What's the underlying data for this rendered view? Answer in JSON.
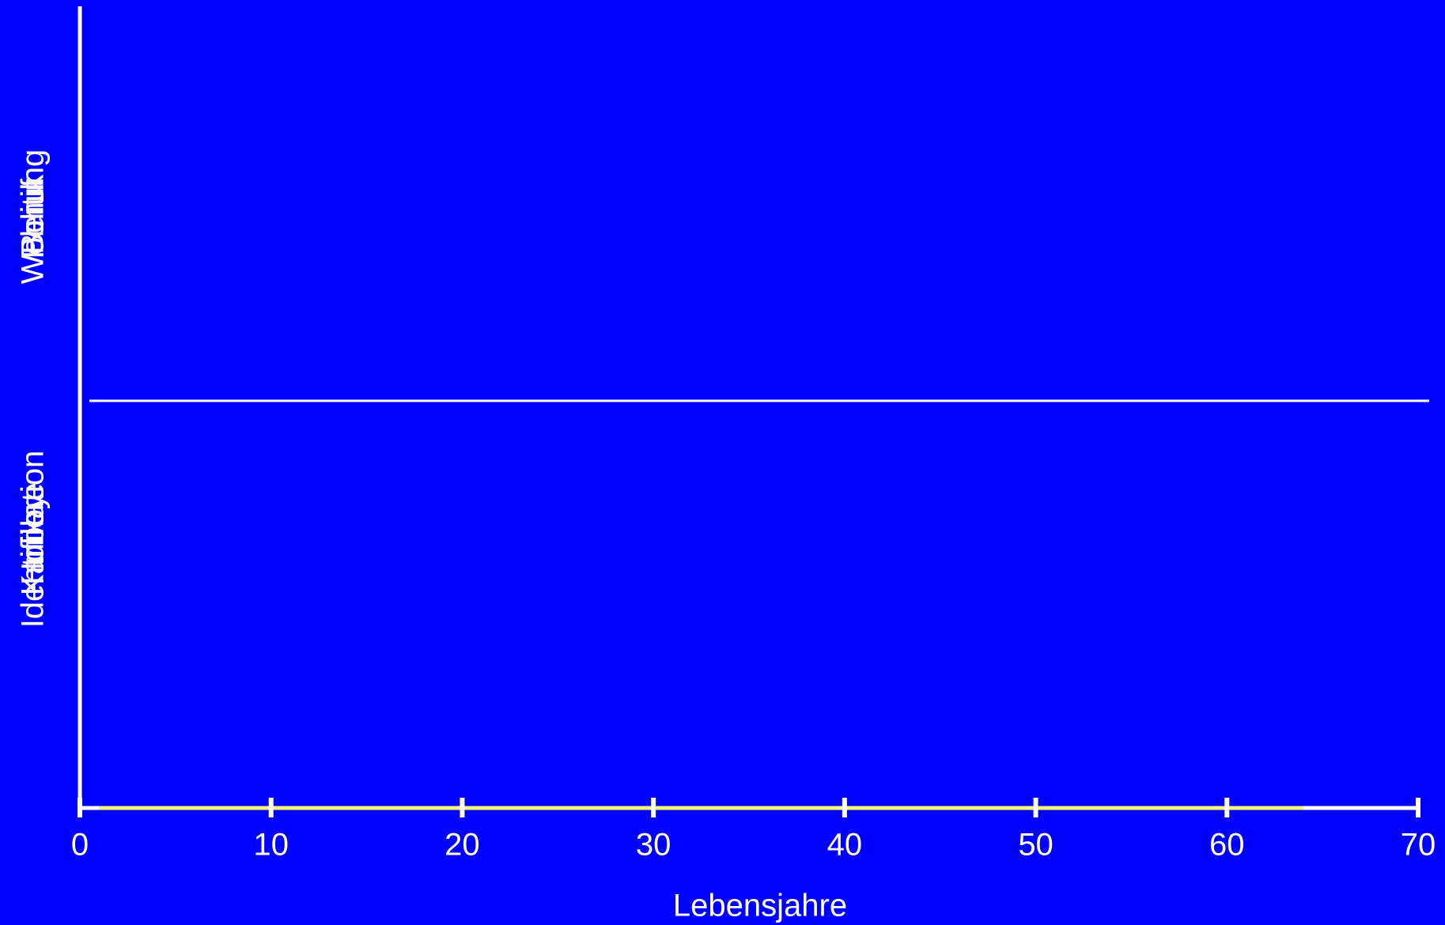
{
  "chart_data": {
    "type": "timeline",
    "xlabel": "Lebensjahre",
    "xlim": [
      0,
      70
    ],
    "xticks": [
      0,
      10,
      20,
      30,
      40,
      50,
      60,
      70
    ],
    "groups": [
      {
        "labels": [
          "Politik",
          "Wohnung",
          "Beruf"
        ]
      },
      {
        "labels": [
          "Identifikation",
          "Karriere",
          "Hobby"
        ]
      }
    ],
    "ranges": [
      [
        1,
        64
      ]
    ],
    "range_color": "#f5f57a",
    "background": "#0000ff",
    "foreground": "#ffffff"
  }
}
